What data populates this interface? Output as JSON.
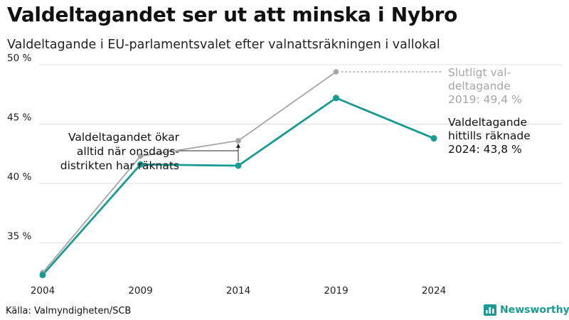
{
  "header": {
    "title": "Valdeltagandet ser ut att minska i Nybro",
    "subtitle": "Valdeltagande i EU-parlamentsvalet efter valnattsräkningen i vallokal"
  },
  "footer": {
    "source": "Källa: Valmyndigheten/SCB",
    "logo_text": "Newsworthy"
  },
  "colors": {
    "final": "#a6a6a6",
    "preliminary": "#1a9b91",
    "grid": "#dddddd"
  },
  "chart_data": {
    "type": "line",
    "x": [
      2004,
      2009,
      2014,
      2019,
      2024
    ],
    "x_tick_labels": [
      "2004",
      "2009",
      "2014",
      "2019",
      "2024"
    ],
    "y_tick_labels": [
      "35 %",
      "40 %",
      "45 %",
      "50 %"
    ],
    "y_ticks": [
      35,
      40,
      45,
      50
    ],
    "ylim": [
      31.5,
      50
    ],
    "grid": true,
    "series": [
      {
        "key": "final",
        "values": [
          32.5,
          42.3,
          43.6,
          49.4,
          null
        ]
      },
      {
        "key": "preliminary",
        "values": [
          32.3,
          41.6,
          41.5,
          47.2,
          43.8
        ]
      }
    ],
    "annotations": {
      "final_label": [
        "Slutligt val-",
        "deltagande",
        "2019: 49,4 %"
      ],
      "preliminary_label": [
        "Valdeltagande",
        "hittills räknade",
        "2024: 43,8 %"
      ],
      "note": [
        "Valdeltagandet ökar",
        "alltid när onsdags-",
        "distrikten har räknats"
      ]
    }
  }
}
